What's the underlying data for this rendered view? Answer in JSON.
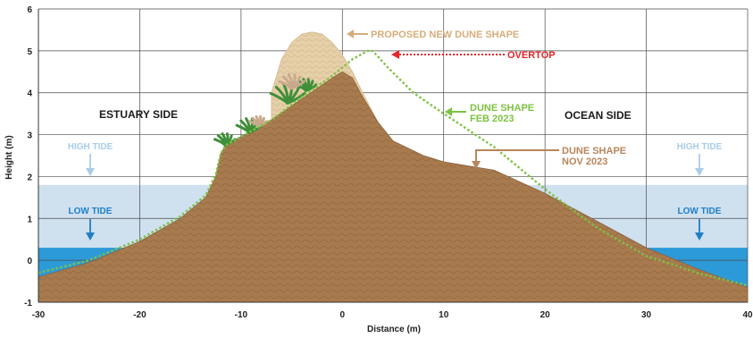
{
  "chart_data": {
    "type": "area",
    "xlabel": "Distance (m)",
    "ylabel": "Height (m)",
    "xlim": [
      -30,
      40
    ],
    "ylim": [
      -1,
      6
    ],
    "x_ticks": [
      -30,
      -20,
      -10,
      0,
      10,
      20,
      30,
      40
    ],
    "y_ticks": [
      -1,
      0,
      1,
      2,
      3,
      4,
      5,
      6
    ],
    "grid": true,
    "tides": {
      "high_tide_level": 1.8,
      "low_tide_level": 0.3,
      "high_tide_color": "#cfe0ef",
      "low_tide_color": "#2d9ad8"
    },
    "series": [
      {
        "name": "DUNE SHAPE NOV 2023",
        "color": "#a87b4f",
        "x": [
          -30,
          -25,
          -20,
          -16,
          -13.5,
          -12.5,
          -12,
          -11.5,
          -10,
          -7,
          -4,
          -1,
          0,
          1,
          2,
          3.5,
          5,
          8,
          10,
          15,
          20,
          25,
          30,
          35,
          40
        ],
        "y": [
          -0.4,
          -0.05,
          0.45,
          1.0,
          1.5,
          2.0,
          2.55,
          2.75,
          2.95,
          3.35,
          3.85,
          4.35,
          4.5,
          4.35,
          3.9,
          3.3,
          2.85,
          2.5,
          2.35,
          2.15,
          1.6,
          0.95,
          0.3,
          -0.2,
          -0.65
        ]
      },
      {
        "name": "DUNE SHAPE FEB 2023",
        "color": "#7dc242",
        "x": [
          -30,
          -25,
          -20,
          -16,
          -13.5,
          -12.5,
          -12,
          -11.5,
          -10,
          -7,
          -4,
          -1,
          1,
          2.5,
          3,
          4.5,
          7,
          10,
          15,
          20,
          25,
          30,
          32,
          35,
          40
        ],
        "y": [
          -0.3,
          0.0,
          0.5,
          1.05,
          1.55,
          2.05,
          2.55,
          2.75,
          2.95,
          3.35,
          3.9,
          4.4,
          4.8,
          5.0,
          5.0,
          4.6,
          4.0,
          3.5,
          2.7,
          1.7,
          0.8,
          0.1,
          -0.05,
          -0.3,
          -0.6
        ]
      },
      {
        "name": "PROPOSED NEW DUNE SHAPE",
        "color": "#e3cca4",
        "x": [
          -7,
          -6,
          -5,
          -4,
          -3,
          -2,
          -1,
          0,
          1,
          2,
          3.5,
          5
        ],
        "y": [
          4.0,
          4.8,
          5.2,
          5.4,
          5.45,
          5.4,
          5.2,
          4.9,
          4.5,
          4.0,
          3.3,
          2.85
        ]
      }
    ],
    "annotations": {
      "proposed": "PROPOSED NEW DUNE SHAPE",
      "overtop": "OVERTOP",
      "feb": [
        "DUNE SHAPE",
        "FEB 2023"
      ],
      "nov": [
        "DUNE SHAPE",
        "NOV 2023"
      ],
      "estuary": "ESTUARY SIDE",
      "ocean": "OCEAN SIDE",
      "high_tide": "HIGH TIDE",
      "low_tide": "LOW TIDE"
    },
    "annotation_colors": {
      "proposed": "#d6ad7a",
      "overtop": "#e8262a",
      "feb": "#7dc242",
      "nov": "#b8865a",
      "side": "#1a1a1a",
      "high_tide": "#a9cde9",
      "low_tide": "#1f7fc4"
    }
  }
}
